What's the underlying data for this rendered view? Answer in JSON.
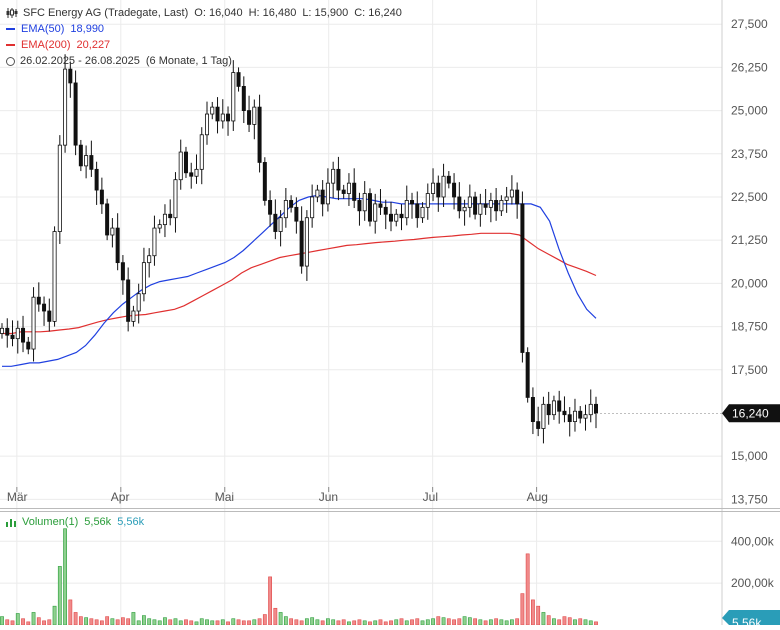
{
  "legend": {
    "instrument": "SFC Energy AG (Tradegate, Last)",
    "open": "O: 16,040",
    "high": "H: 16,480",
    "low": "L: 15,900",
    "close": "C: 16,240",
    "ema50_label": "EMA(50)",
    "ema50_value": "18,990",
    "ema200_label": "EMA(200)",
    "ema200_value": "20,227",
    "range": "26.02.2025 - 26.08.2025",
    "period": "(6 Monate, 1 Tag)"
  },
  "volume_legend": {
    "label": "Volumen(1)",
    "value1": "5,56k",
    "value2": "5,56k"
  },
  "colors": {
    "up": "#2a9d3a",
    "down": "#e04848",
    "ema50": "#2040e0",
    "ema200": "#e03030",
    "candle": "#111111",
    "grid": "#ebebeb",
    "badge": "#111111",
    "vol_badge": "#2a9db8"
  },
  "chart_data": {
    "type": "candlestick",
    "y_ticks": [
      "27,500",
      "26,250",
      "25,000",
      "23,750",
      "22,500",
      "21,250",
      "20,000",
      "18,750",
      "17,500",
      "15,000",
      "13,750"
    ],
    "y_tick_values": [
      27.5,
      26.25,
      25.0,
      23.75,
      22.5,
      21.25,
      20.0,
      18.75,
      17.5,
      15.0,
      13.75
    ],
    "ylim": [
      13.5,
      28.2
    ],
    "x_ticks": [
      "Mär",
      "Apr",
      "Mai",
      "Jun",
      "Jul",
      "Aug"
    ],
    "x_tick_days": [
      3,
      24,
      45,
      66,
      87,
      108
    ],
    "last_price_label": "16,240",
    "last_price": 16.24,
    "closes": [
      18.7,
      18.5,
      18.4,
      18.7,
      18.3,
      18.1,
      19.6,
      19.4,
      19.2,
      18.9,
      21.5,
      24.0,
      26.2,
      25.8,
      24.0,
      23.4,
      23.7,
      23.3,
      22.7,
      22.3,
      21.4,
      21.6,
      20.6,
      20.1,
      18.9,
      19.2,
      19.7,
      20.6,
      20.8,
      21.6,
      21.7,
      22.0,
      21.9,
      23.0,
      23.8,
      23.2,
      23.1,
      23.3,
      24.3,
      24.9,
      25.1,
      24.7,
      24.9,
      24.7,
      26.1,
      25.7,
      25.0,
      24.6,
      25.1,
      23.5,
      22.4,
      22.0,
      21.5,
      21.9,
      22.4,
      22.2,
      21.8,
      20.5,
      21.9,
      22.5,
      22.7,
      22.3,
      22.9,
      23.3,
      22.7,
      22.6,
      22.9,
      22.4,
      22.1,
      22.6,
      21.8,
      22.3,
      22.2,
      22.0,
      21.8,
      22.0,
      21.9,
      22.4,
      22.3,
      21.9,
      22.2,
      22.6,
      22.9,
      22.5,
      23.1,
      22.9,
      22.5,
      22.1,
      22.2,
      22.5,
      22.0,
      22.3,
      22.2,
      22.4,
      22.1,
      22.4,
      22.5,
      22.7,
      22.3,
      18.0,
      16.7,
      16.0,
      15.8,
      16.5,
      16.2,
      16.6,
      16.3,
      16.2,
      16.0,
      16.3,
      16.1,
      16.2,
      16.5,
      16.24
    ],
    "ema50": [
      17.6,
      17.6,
      17.65,
      17.7,
      17.7,
      17.75,
      17.8,
      17.9,
      18.0,
      18.2,
      18.5,
      18.85,
      19.15,
      19.4,
      19.6,
      19.8,
      19.95,
      20.05,
      20.1,
      20.15,
      20.2,
      20.3,
      20.4,
      20.5,
      20.6,
      20.75,
      20.95,
      21.2,
      21.45,
      21.7,
      21.95,
      22.2,
      22.4,
      22.5,
      22.55,
      22.5,
      22.45,
      22.45,
      22.45,
      22.45,
      22.4,
      22.35,
      22.35,
      22.3,
      22.3,
      22.3,
      22.3,
      22.3,
      22.3,
      22.3,
      22.3,
      22.3,
      22.3,
      22.3,
      22.3,
      22.3,
      22.3,
      22.3,
      22.2,
      21.8,
      21.0,
      20.3,
      19.7,
      19.25,
      18.99
    ],
    "ema200": [
      18.55,
      18.55,
      18.6,
      18.6,
      18.6,
      18.62,
      18.65,
      18.68,
      18.72,
      18.8,
      18.88,
      18.95,
      19.0,
      19.05,
      19.08,
      19.1,
      19.15,
      19.2,
      19.25,
      19.35,
      19.5,
      19.65,
      19.8,
      19.95,
      20.1,
      20.3,
      20.45,
      20.55,
      20.65,
      20.75,
      20.8,
      20.85,
      20.9,
      20.95,
      21.0,
      21.05,
      21.1,
      21.12,
      21.15,
      21.18,
      21.2,
      21.22,
      21.25,
      21.27,
      21.3,
      21.33,
      21.35,
      21.37,
      21.4,
      21.42,
      21.45,
      21.45,
      21.45,
      21.45,
      21.4,
      21.2,
      21.0,
      20.85,
      20.7,
      20.55,
      20.45,
      20.35,
      20.227
    ],
    "volume_ticks": [
      "400,00k",
      "200,00k"
    ],
    "volume_tick_values": [
      400,
      200
    ],
    "volume_ylim": [
      0,
      540
    ],
    "volume_badge_label": "5,56k",
    "volumes": [
      40,
      25,
      20,
      55,
      30,
      15,
      60,
      35,
      20,
      25,
      90,
      280,
      460,
      120,
      60,
      40,
      35,
      30,
      25,
      20,
      40,
      30,
      25,
      35,
      30,
      60,
      20,
      45,
      30,
      25,
      20,
      35,
      25,
      30,
      20,
      25,
      20,
      15,
      30,
      25,
      20,
      20,
      25,
      15,
      30,
      25,
      20,
      20,
      25,
      30,
      50,
      230,
      80,
      60,
      40,
      30,
      25,
      20,
      30,
      35,
      25,
      20,
      30,
      25,
      20,
      25,
      15,
      20,
      25,
      20,
      15,
      20,
      25,
      15,
      20,
      25,
      30,
      20,
      25,
      30,
      20,
      25,
      30,
      40,
      35,
      30,
      25,
      30,
      40,
      35,
      30,
      25,
      20,
      25,
      30,
      25,
      20,
      25,
      30,
      150,
      340,
      120,
      90,
      60,
      45,
      30,
      25,
      40,
      35,
      25,
      30,
      25,
      20,
      15
    ]
  }
}
